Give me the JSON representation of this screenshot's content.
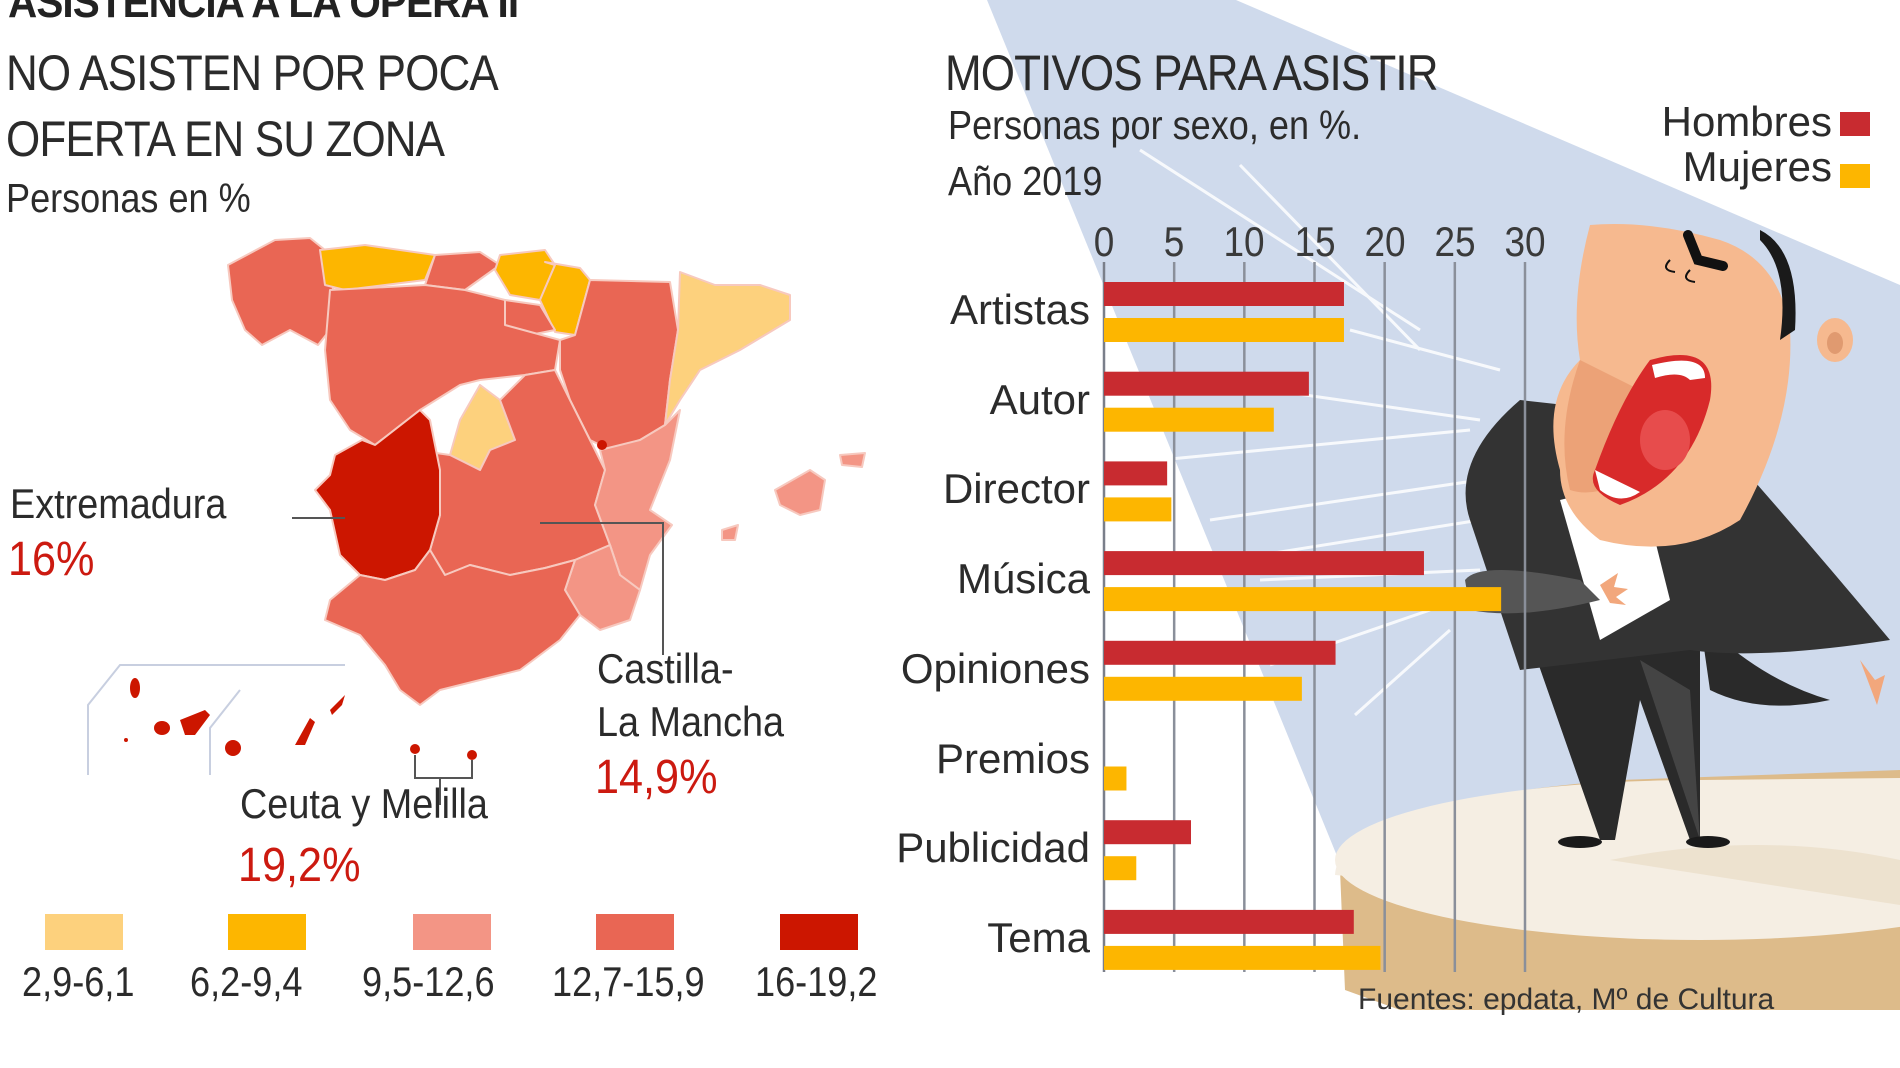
{
  "header": {
    "title": "ASISTENCIA A LA ÓPERA II"
  },
  "map_panel": {
    "title_line1": "NO ASISTEN POR POCA",
    "title_line2": "OFERTA EN SU ZONA",
    "subtitle": "Personas en %",
    "callouts": [
      {
        "region": "Extremadura",
        "value": "16%"
      },
      {
        "region_line1": "Castilla-",
        "region_line2": "La Mancha",
        "value": "14,9%"
      },
      {
        "region": "Ceuta y Melilla",
        "value": "19,2%"
      }
    ],
    "legend": [
      {
        "range": "2,9-6,1",
        "color": "#fdd17d"
      },
      {
        "range": "6,2-9,4",
        "color": "#fdb600"
      },
      {
        "range": "9,5-12,6",
        "color": "#f39585"
      },
      {
        "range": "12,7-15,9",
        "color": "#e96654"
      },
      {
        "range": "16-19,2",
        "color": "#cc1600"
      }
    ],
    "region_classes": {
      "galicia": "12,7-15,9",
      "asturias": "6,2-9,4",
      "cantabria": "12,7-15,9",
      "pais_vasco": "6,2-9,4",
      "navarra": "6,2-9,4",
      "la_rioja": "12,7-15,9",
      "aragon": "12,7-15,9",
      "cataluna": "2,9-6,1",
      "castilla_y_leon": "12,7-15,9",
      "madrid": "2,9-6,1",
      "castilla_la_mancha": "12,7-15,9",
      "extremadura": "16-19,2",
      "comunidad_valenciana": "9,5-12,6",
      "murcia": "9,5-12,6",
      "andalucia": "12,7-15,9",
      "baleares": "9,5-12,6",
      "canarias": "16-19,2",
      "ceuta_y_melilla": "16-19,2"
    }
  },
  "chart_panel": {
    "title": "MOTIVOS PARA ASISTIR",
    "subtitle_line1": "Personas por sexo, en %.",
    "subtitle_line2": "Año 2019"
  },
  "chart_data": {
    "type": "bar",
    "orientation": "horizontal",
    "title": "MOTIVOS PARA ASISTIR",
    "subtitle": "Personas por sexo, en %. Año 2019",
    "xlabel": "",
    "ylabel": "",
    "categories": [
      "Artistas",
      "Autor",
      "Director",
      "Música",
      "Opiniones",
      "Premios",
      "Publicidad",
      "Tema"
    ],
    "series": [
      {
        "name": "Hombres",
        "color": "#c82b30",
        "values": [
          17.1,
          14.6,
          4.5,
          22.8,
          16.5,
          0,
          6.2,
          17.8
        ]
      },
      {
        "name": "Mujeres",
        "color": "#fdb600",
        "values": [
          17.1,
          12.1,
          4.8,
          28.3,
          14.1,
          1.6,
          2.3,
          19.7
        ]
      }
    ],
    "xlim": [
      0,
      30
    ],
    "xticks": [
      "0",
      "5",
      "10",
      "15",
      "20",
      "25",
      "30"
    ],
    "xtick_values": [
      0,
      5,
      10,
      15,
      20,
      25,
      30
    ],
    "grid": true,
    "legend_position": "top-right"
  },
  "footer": {
    "source": "Fuentes: epdata, Mº de Cultura"
  }
}
